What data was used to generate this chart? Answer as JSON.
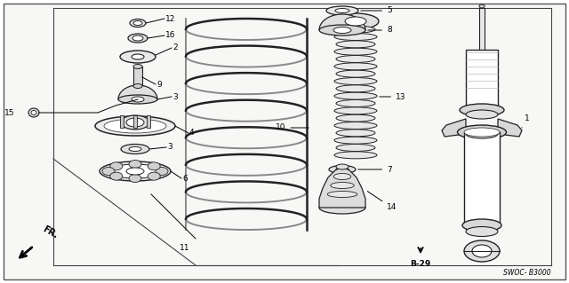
{
  "bg_color": "#ffffff",
  "border_color": "#444444",
  "text_color": "#000000",
  "fig_width": 6.4,
  "fig_height": 3.19,
  "dpi": 100,
  "diagram_code": "SWOC- B3000",
  "ref_label": "B-29",
  "fr_label": "FR."
}
